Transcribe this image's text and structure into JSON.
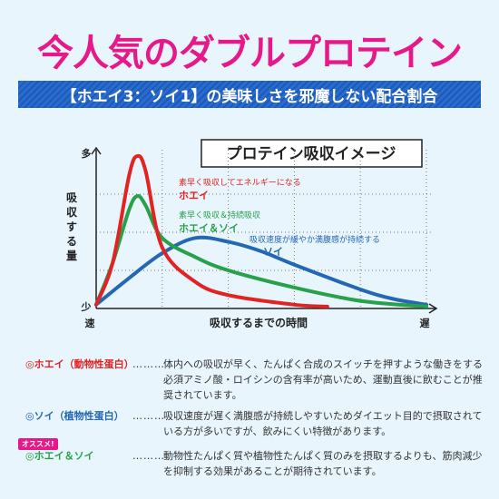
{
  "headline": "今人気のダブルプロテイン",
  "banner": "【ホエイ3：ソイ1】の美味しさを邪魔しない配合割合",
  "chart_data": {
    "type": "line",
    "title": "プロテイン吸収イメージ",
    "ylabel": "吸収する量",
    "xlabel": "吸収するまでの時間",
    "y_tick_labels": {
      "top": "多",
      "bottom": "少"
    },
    "x_tick_labels": {
      "left": "速",
      "right": "遅"
    },
    "grid": true,
    "x": [
      0,
      2,
      4,
      6,
      8,
      10
    ],
    "ylim": [
      0,
      4
    ],
    "series": [
      {
        "name": "ホエイ",
        "note": "素早く吸収してエネルギーになる",
        "color": "#e02424",
        "points": [
          [
            0,
            0.1
          ],
          [
            0.5,
            1.2
          ],
          [
            1.0,
            3.5
          ],
          [
            1.25,
            4.0
          ],
          [
            1.5,
            3.6
          ],
          [
            2,
            1.6
          ],
          [
            3,
            0.7
          ],
          [
            4,
            0.35
          ],
          [
            6,
            0.1
          ],
          [
            7,
            0.05
          ]
        ]
      },
      {
        "name": "ホエイ＆ソイ",
        "note": "素早く吸収＆持続吸収",
        "color": "#27a24a",
        "points": [
          [
            0,
            0.1
          ],
          [
            0.5,
            1.2
          ],
          [
            1.0,
            2.6
          ],
          [
            1.25,
            2.95
          ],
          [
            1.5,
            2.7
          ],
          [
            2,
            1.85
          ],
          [
            3,
            1.35
          ],
          [
            4,
            1.0
          ],
          [
            6,
            0.55
          ],
          [
            8,
            0.2
          ],
          [
            10,
            0.05
          ]
        ]
      },
      {
        "name": "ソイ",
        "note": "吸収速度が緩やか満腹感が持続する",
        "color": "#2468b4",
        "points": [
          [
            0,
            0.1
          ],
          [
            1,
            0.8
          ],
          [
            2,
            1.45
          ],
          [
            3,
            1.85
          ],
          [
            4,
            1.75
          ],
          [
            5,
            1.5
          ],
          [
            6,
            1.15
          ],
          [
            8,
            0.5
          ],
          [
            9,
            0.25
          ],
          [
            10,
            0.1
          ]
        ]
      }
    ]
  },
  "descriptions": [
    {
      "term": "◎ホエイ（動物性蛋白）",
      "dots": "………",
      "term_color": "#e02424",
      "body": "体内への吸収が早く、たんぱく合成のスイッチを押すような働きをする必須アミノ酸・ロイシンの含有率が高いため、運動直後に飲むことが推奨されています。"
    },
    {
      "term": "◎ソイ（植物性蛋白）",
      "dots": "………",
      "term_color": "#2468b4",
      "body": "吸収速度が遅く満腹感が持続しやすいためダイエット目的で摂取されている方が多いですが、飲みにくい特徴があります。"
    },
    {
      "term": "◎ホエイ＆ソイ",
      "dots": "………",
      "term_color": "#27a24a",
      "badge": "オススメ!",
      "body": "動物性たんぱく質や植物性たんぱく質のみを摂取するよりも、筋肉減少を抑制する効果があることが期待されています。"
    }
  ]
}
